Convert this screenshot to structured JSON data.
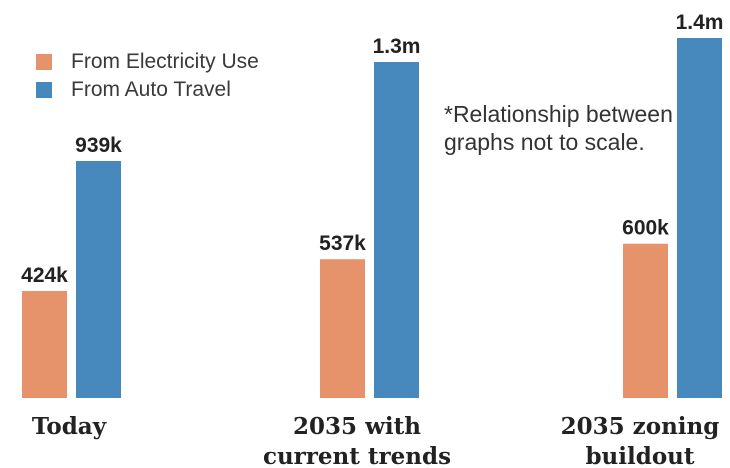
{
  "chart_data": {
    "type": "bar",
    "categories": [
      [
        "Today"
      ],
      [
        "2035 with",
        "current trends"
      ],
      [
        "2035 zoning",
        "buildout"
      ]
    ],
    "series": [
      {
        "name": "From Electricity Use",
        "color": "#e6936b",
        "values": [
          424000,
          537000,
          600000
        ],
        "labels": [
          "424k",
          "537k",
          "600k"
        ]
      },
      {
        "name": "From Auto Travel",
        "color": "#4789bd",
        "values": [
          939000,
          1300000,
          1400000
        ],
        "labels": [
          "939k",
          "1.3m",
          "1.4m"
        ]
      }
    ],
    "group_max": [
      939000,
      1300000,
      1400000
    ],
    "legend_position": "top-left",
    "grid": false
  },
  "note": "*Relationship between graphs not to scale."
}
